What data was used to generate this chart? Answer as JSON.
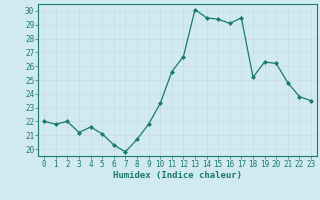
{
  "x": [
    0,
    1,
    2,
    3,
    4,
    5,
    6,
    7,
    8,
    9,
    10,
    11,
    12,
    13,
    14,
    15,
    16,
    17,
    18,
    19,
    20,
    21,
    22,
    23
  ],
  "y": [
    22.0,
    21.8,
    22.0,
    21.2,
    21.6,
    21.1,
    20.3,
    19.8,
    20.7,
    21.8,
    23.3,
    25.6,
    26.7,
    30.1,
    29.5,
    29.4,
    29.1,
    29.5,
    25.2,
    26.3,
    26.2,
    24.8,
    23.8,
    23.5
  ],
  "line_color": "#1a7a6e",
  "marker": "D",
  "marker_size": 2,
  "bg_color": "#d0eaf0",
  "grid_major_color": "#c8dce0",
  "grid_minor_color": "#ddeef2",
  "axis_color": "#1a7a6e",
  "tick_color": "#1a7a6e",
  "xlabel": "Humidex (Indice chaleur)",
  "xlim": [
    -0.5,
    23.5
  ],
  "ylim": [
    19.5,
    30.5
  ],
  "yticks": [
    20,
    21,
    22,
    23,
    24,
    25,
    26,
    27,
    28,
    29,
    30
  ],
  "xticks": [
    0,
    1,
    2,
    3,
    4,
    5,
    6,
    7,
    8,
    9,
    10,
    11,
    12,
    13,
    14,
    15,
    16,
    17,
    18,
    19,
    20,
    21,
    22,
    23
  ],
  "tick_fontsize": 5.5,
  "label_fontsize": 6.5
}
